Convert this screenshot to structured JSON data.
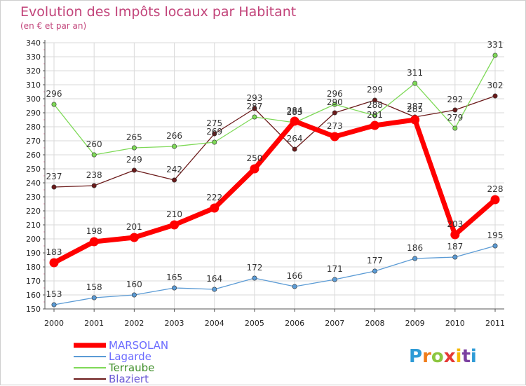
{
  "chart_data": {
    "type": "line",
    "title": "Evolution des Impôts locaux par Habitant",
    "subtitle": "(en € et par an)",
    "xlabel": "",
    "ylabel": "",
    "ylim": [
      150,
      340
    ],
    "ytick_step": 10,
    "grid": true,
    "legend_position": "bottom-left",
    "x": [
      "2000",
      "2001",
      "2002",
      "2003",
      "2004",
      "2005",
      "2006",
      "2007",
      "2008",
      "2009",
      "2010",
      "2011"
    ],
    "series": [
      {
        "name": "MARSOLAN",
        "color": "#ff0000",
        "values": [
          183,
          198,
          201,
          210,
          222,
          250,
          284,
          273,
          281,
          285,
          203,
          228
        ]
      },
      {
        "name": "Lagarde",
        "color": "#5b9bd5",
        "values": [
          153,
          158,
          160,
          165,
          164,
          172,
          166,
          171,
          177,
          186,
          187,
          195
        ]
      },
      {
        "name": "Terraube",
        "color": "#7ed957",
        "values": [
          296,
          260,
          265,
          266,
          269,
          287,
          283,
          296,
          288,
          311,
          279,
          331
        ]
      },
      {
        "name": "Blaziert",
        "color": "#6b1a1a",
        "values": [
          237,
          238,
          249,
          242,
          275,
          293,
          264,
          290,
          299,
          287,
          292,
          302
        ]
      }
    ]
  },
  "logo": {
    "text": "Proxiti",
    "letter_colors": [
      "#2e9bd6",
      "#f07c1a",
      "#8cc63f",
      "#e53935",
      "#f5b800",
      "#7b3fa0",
      "#2e9bd6"
    ]
  },
  "colors": {
    "title": "#c2447a",
    "grid": "#d9d9d9",
    "axis": "#555555",
    "minor_tick": "#e08aa8"
  }
}
